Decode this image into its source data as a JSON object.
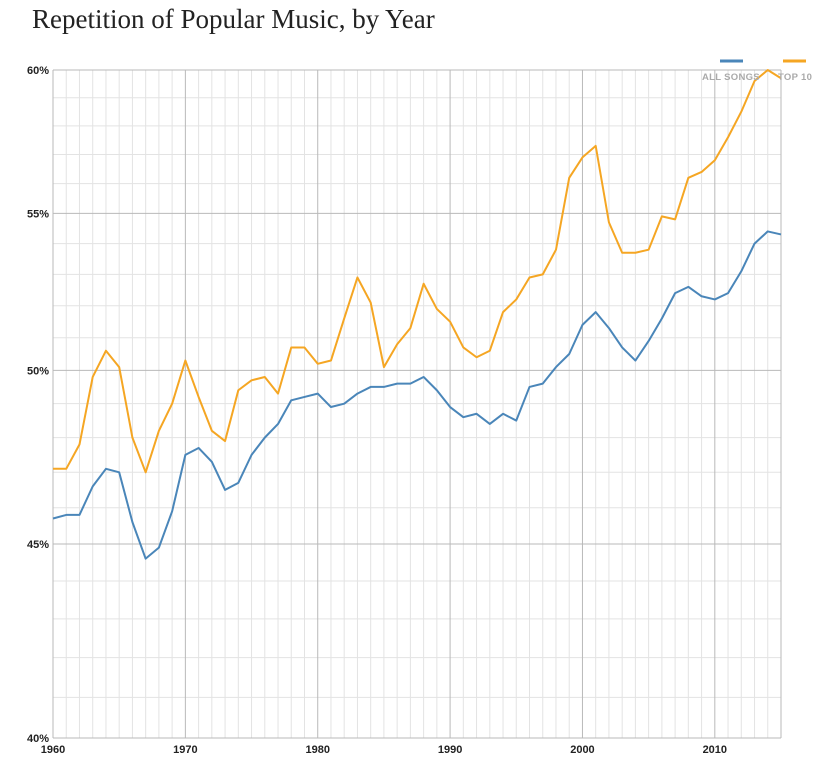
{
  "title": "Repetition of Popular Music, by Year",
  "chart_data": {
    "type": "line",
    "title": "Repetition of Popular Music, by Year",
    "xlabel": "",
    "ylabel": "",
    "xlim": [
      1960,
      2015
    ],
    "ylim": [
      40,
      60
    ],
    "y_scale": "log",
    "x_ticks": [
      1960,
      1970,
      1980,
      1990,
      2000,
      2010
    ],
    "x_tick_labels": [
      "1960",
      "1970",
      "1980",
      "1990",
      "2000",
      "2010"
    ],
    "y_ticks": [
      40,
      45,
      50,
      55,
      60
    ],
    "y_tick_labels": [
      "40%",
      "45%",
      "50%",
      "55%",
      "60%"
    ],
    "grid": true,
    "legend_position": "top-right",
    "x": [
      1960,
      1961,
      1962,
      1963,
      1964,
      1965,
      1966,
      1967,
      1968,
      1969,
      1970,
      1971,
      1972,
      1973,
      1974,
      1975,
      1976,
      1977,
      1978,
      1979,
      1980,
      1981,
      1982,
      1983,
      1984,
      1985,
      1986,
      1987,
      1988,
      1989,
      1990,
      1991,
      1992,
      1993,
      1994,
      1995,
      1996,
      1997,
      1998,
      1999,
      2000,
      2001,
      2002,
      2003,
      2004,
      2005,
      2006,
      2007,
      2008,
      2009,
      2010,
      2011,
      2012,
      2013,
      2014,
      2015
    ],
    "series": [
      {
        "name": "ALL SONGS",
        "color": "#4a86b9",
        "values": [
          45.7,
          45.8,
          45.8,
          46.6,
          47.1,
          47.0,
          45.6,
          44.6,
          44.9,
          45.9,
          47.5,
          47.7,
          47.3,
          46.5,
          46.7,
          47.5,
          48.0,
          48.4,
          49.1,
          49.2,
          49.3,
          48.9,
          49.0,
          49.3,
          49.5,
          49.5,
          49.6,
          49.6,
          49.8,
          49.4,
          48.9,
          48.6,
          48.7,
          48.4,
          48.7,
          48.5,
          49.5,
          49.6,
          50.1,
          50.5,
          51.4,
          51.8,
          51.3,
          50.7,
          50.3,
          50.9,
          51.6,
          52.4,
          52.6,
          52.3,
          52.2,
          52.4,
          53.1,
          54.0,
          54.4,
          54.3
        ]
      },
      {
        "name": "TOP 10",
        "color": "#f5a623",
        "values": [
          47.1,
          47.1,
          47.8,
          49.8,
          50.6,
          50.1,
          48.0,
          47.0,
          48.2,
          49.0,
          50.3,
          49.2,
          48.2,
          47.9,
          49.4,
          49.7,
          49.8,
          49.3,
          50.7,
          50.7,
          50.2,
          50.3,
          51.6,
          52.9,
          52.1,
          50.1,
          50.8,
          51.3,
          52.7,
          51.9,
          51.5,
          50.7,
          50.4,
          50.6,
          51.8,
          52.2,
          52.9,
          53.0,
          53.8,
          56.2,
          56.9,
          57.3,
          54.7,
          53.7,
          53.7,
          53.8,
          54.9,
          54.8,
          56.2,
          56.4,
          56.8,
          57.6,
          58.5,
          59.6,
          60.0,
          59.7
        ]
      }
    ]
  }
}
